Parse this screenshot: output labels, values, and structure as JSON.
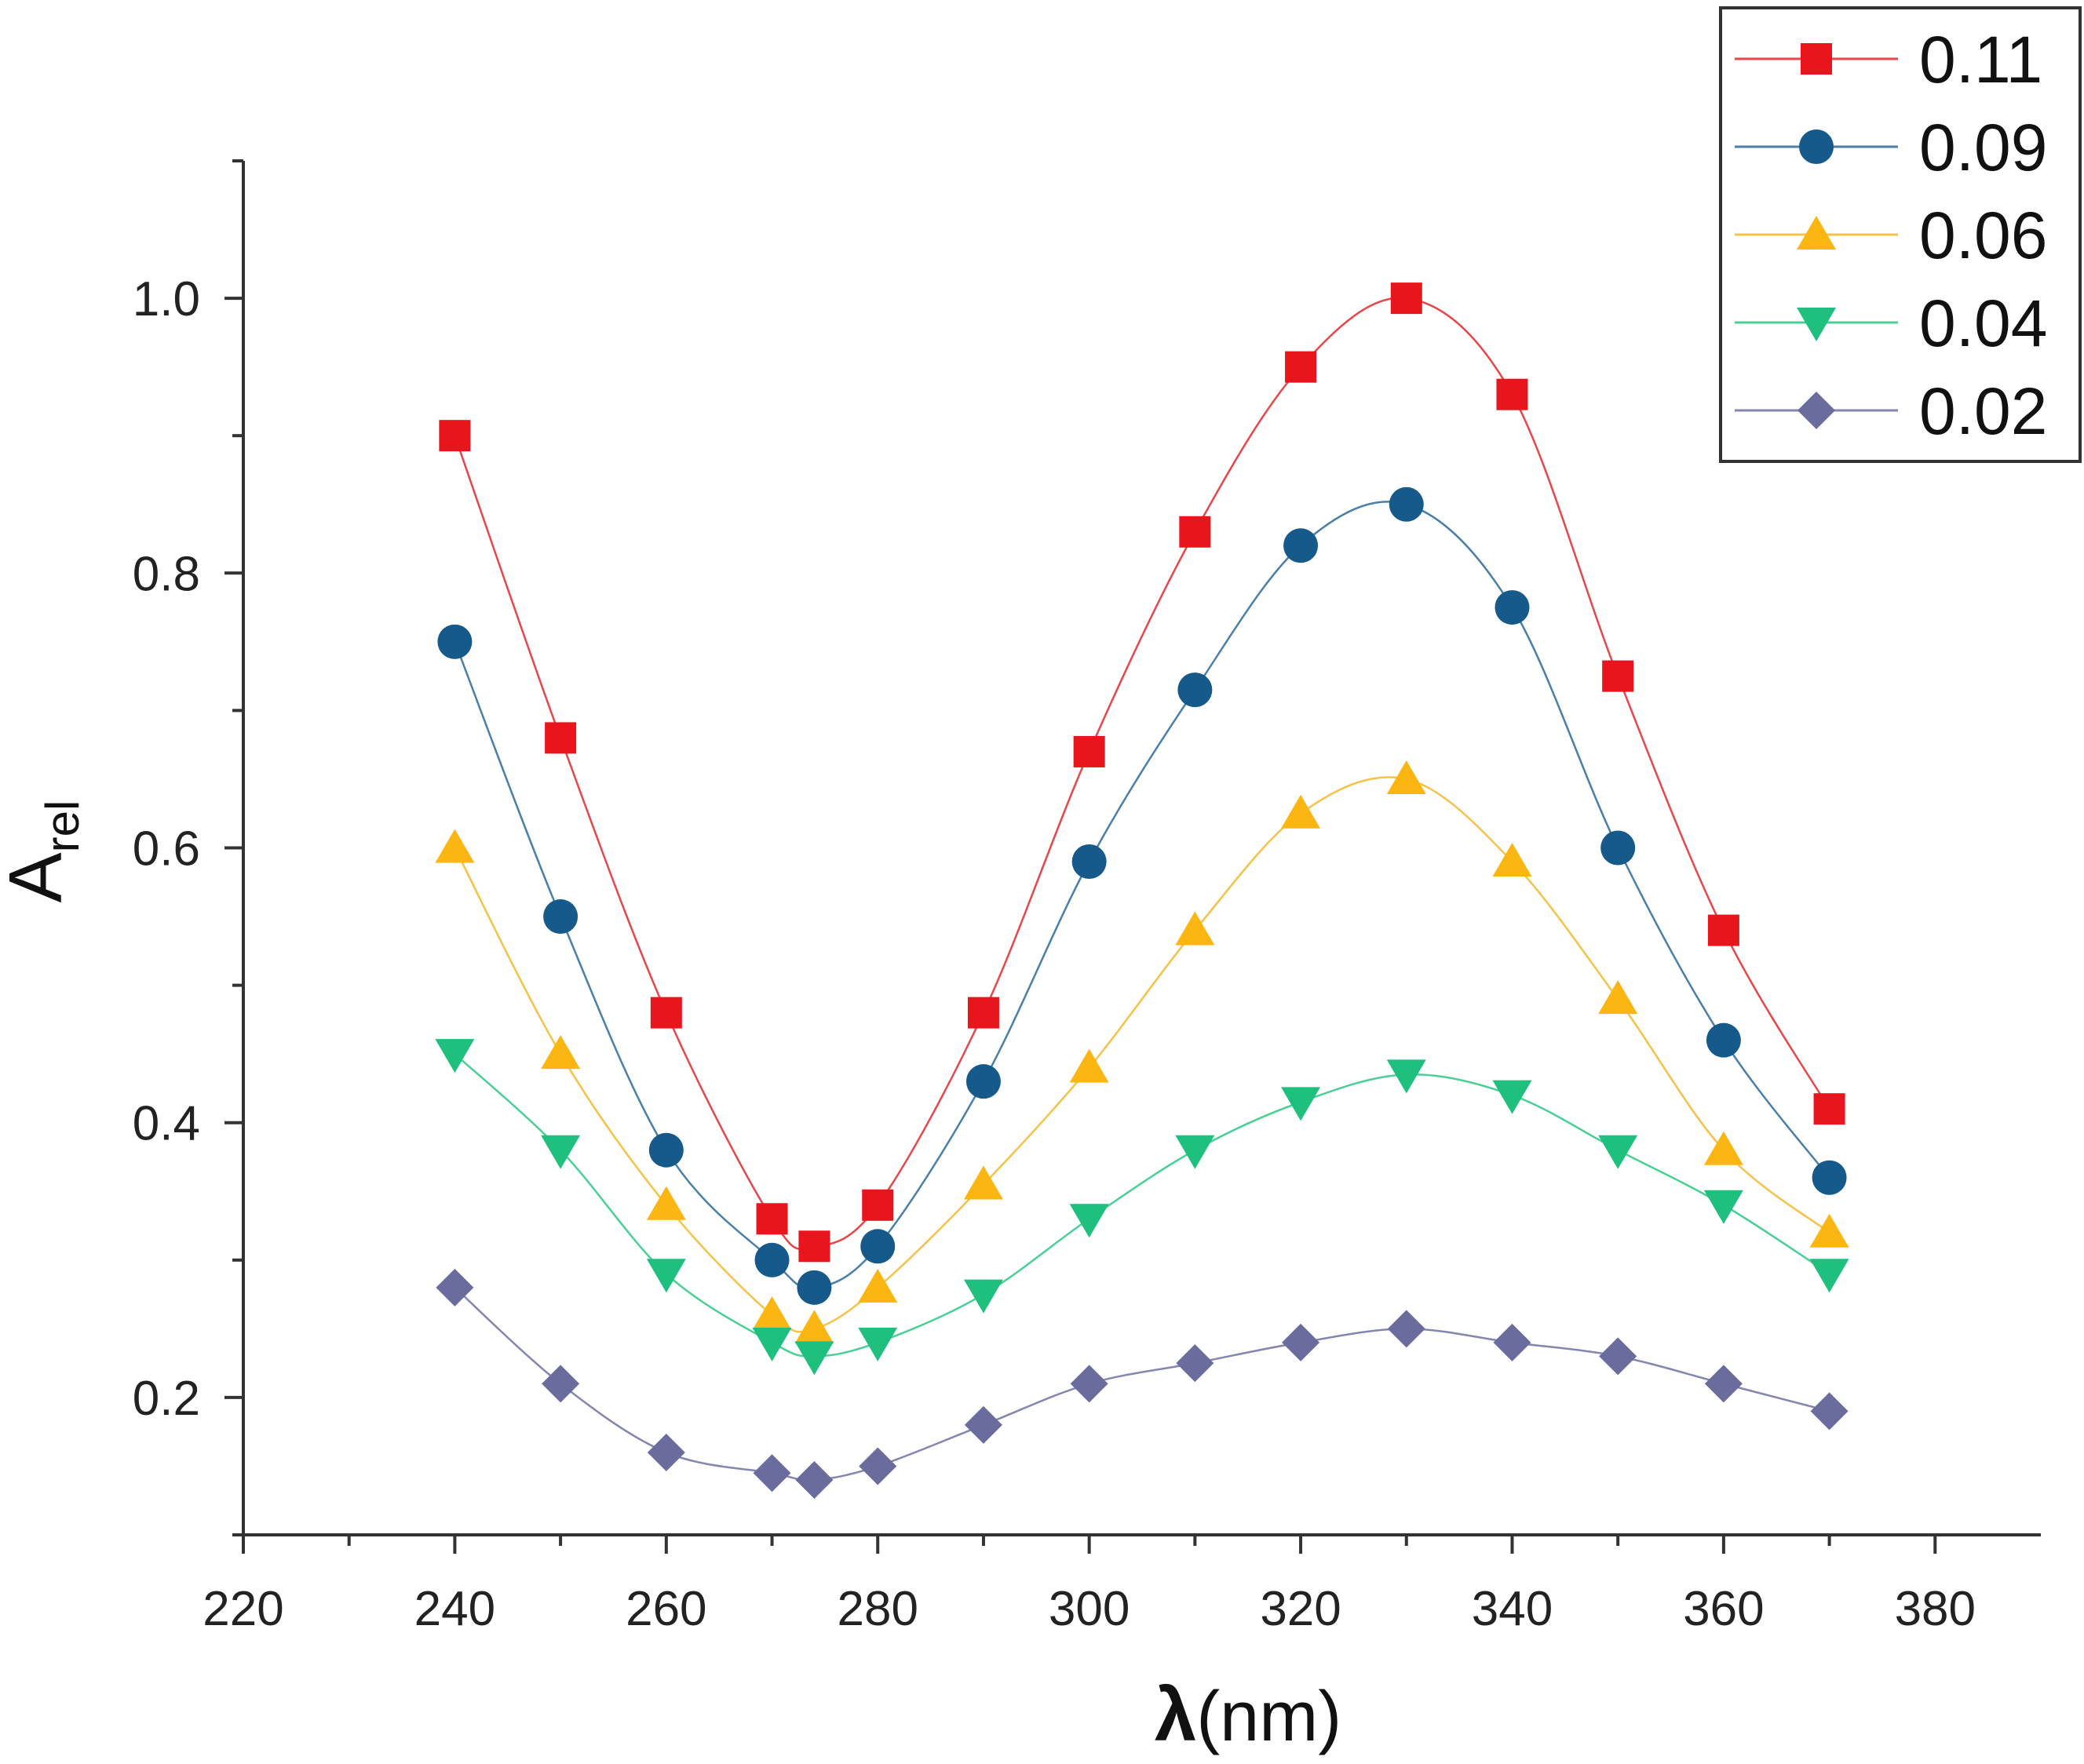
{
  "chart_data": {
    "type": "line",
    "title": "",
    "xlabel": {
      "symbol": "λ",
      "unit": "(nm)"
    },
    "ylabel": {
      "main": "A",
      "subscript": "rel"
    },
    "xlim": [
      220,
      390
    ],
    "ylim": [
      0.1,
      1.1
    ],
    "x_ticks": [
      220,
      240,
      260,
      280,
      300,
      320,
      340,
      360,
      380
    ],
    "y_ticks": [
      0.2,
      0.4,
      0.6,
      0.8,
      1.0
    ],
    "y_tick_labels": [
      "0.2",
      "0.4",
      "0.6",
      "0.8",
      "1.0"
    ],
    "grid": false,
    "legend_position": "top-right",
    "x": [
      240,
      250,
      260,
      270,
      274,
      280,
      290,
      300,
      310,
      320,
      330,
      340,
      350,
      360,
      370
    ],
    "series": [
      {
        "name": "0.11",
        "marker": "square",
        "marker_color": "#e8151c",
        "line_color": "#e8464a",
        "values": [
          0.9,
          0.68,
          0.48,
          0.33,
          0.31,
          0.34,
          0.48,
          0.67,
          0.83,
          0.95,
          1.0,
          0.93,
          0.725,
          0.54,
          0.41
        ]
      },
      {
        "name": "0.09",
        "marker": "circle",
        "marker_color": "#155a8a",
        "line_color": "#4a7fa8",
        "values": [
          0.75,
          0.55,
          0.38,
          0.3,
          0.28,
          0.31,
          0.43,
          0.59,
          0.715,
          0.82,
          0.85,
          0.775,
          0.6,
          0.46,
          0.36
        ]
      },
      {
        "name": "0.06",
        "marker": "triangle-up",
        "marker_color": "#fbb612",
        "line_color": "#f5c24a",
        "values": [
          0.6,
          0.45,
          0.34,
          0.26,
          0.25,
          0.28,
          0.355,
          0.44,
          0.54,
          0.625,
          0.65,
          0.59,
          0.49,
          0.38,
          0.32
        ]
      },
      {
        "name": "0.04",
        "marker": "triangle-down",
        "marker_color": "#1fc07e",
        "line_color": "#4ccf96",
        "values": [
          0.45,
          0.38,
          0.29,
          0.24,
          0.23,
          0.24,
          0.275,
          0.33,
          0.38,
          0.415,
          0.435,
          0.42,
          0.38,
          0.34,
          0.29
        ]
      },
      {
        "name": "0.02",
        "marker": "diamond",
        "marker_color": "#6a6c9e",
        "line_color": "#8486b0",
        "values": [
          0.28,
          0.21,
          0.16,
          0.145,
          0.14,
          0.15,
          0.18,
          0.21,
          0.225,
          0.24,
          0.25,
          0.24,
          0.23,
          0.21,
          0.19
        ]
      }
    ]
  }
}
